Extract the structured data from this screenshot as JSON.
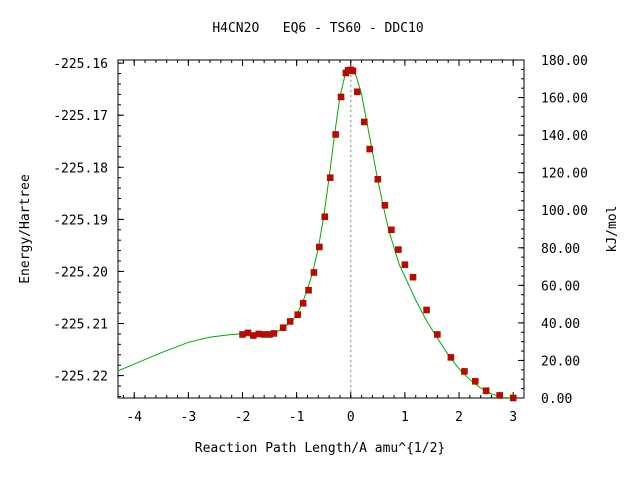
{
  "chart_data": {
    "type": "line",
    "title": "H4CN2O   EQ6 - TS60 - DDC10",
    "xlabel": "Reaction Path Length/A amu^{1/2}",
    "ylabel": "Energy/Hartree",
    "y2label": "kJ/mol",
    "xlim": [
      -4.3,
      3.2
    ],
    "ylim": [
      -225.2243,
      -225.1594
    ],
    "y2lim": [
      0,
      180
    ],
    "x_ticks": [
      -4,
      -3,
      -2,
      -1,
      0,
      1,
      2,
      3
    ],
    "x_tick_labels": [
      "-4",
      "-3",
      "-2",
      "-1",
      "0",
      "1",
      "2",
      "3"
    ],
    "y_ticks": [
      -225.16,
      -225.17,
      -225.18,
      -225.19,
      -225.2,
      -225.21,
      -225.22
    ],
    "y_tick_labels": [
      "-225.16",
      "-225.17",
      "-225.18",
      "-225.19",
      "-225.20",
      "-225.21",
      "-225.22"
    ],
    "y2_ticks": [
      0,
      20,
      40,
      60,
      80,
      100,
      120,
      140,
      160,
      180
    ],
    "y2_tick_labels": [
      "0.00",
      "20.00",
      "40.00",
      "60.00",
      "80.00",
      "100.00",
      "120.00",
      "140.00",
      "160.00",
      "180.00"
    ],
    "ts_marker_x": 0,
    "grid": false,
    "colors": {
      "curve": "#00aa00",
      "points": "#cc0000",
      "marker_line": "#888888",
      "axis": "#000000"
    },
    "curve": {
      "x": [
        -4.3,
        -4.0,
        -3.5,
        -3.0,
        -2.6,
        -2.2,
        -2.0,
        -1.8,
        -1.6,
        -1.4,
        -1.25,
        -1.1,
        -1.0,
        -0.9,
        -0.8,
        -0.7,
        -0.6,
        -0.5,
        -0.4,
        -0.3,
        -0.2,
        -0.1,
        -0.05,
        0.0,
        0.05,
        0.1,
        0.2,
        0.3,
        0.4,
        0.5,
        0.6,
        0.7,
        0.8,
        0.9,
        1.0,
        1.2,
        1.4,
        1.6,
        1.8,
        2.0,
        2.2,
        2.4,
        2.6,
        2.8,
        3.0
      ],
      "y": [
        -225.2191,
        -225.2178,
        -225.2156,
        -225.2136,
        -225.2126,
        -225.2121,
        -225.212,
        -225.212,
        -225.212,
        -225.2119,
        -225.2108,
        -225.2097,
        -225.2083,
        -225.2062,
        -225.2034,
        -225.2,
        -225.1955,
        -225.1895,
        -225.182,
        -225.1738,
        -225.1665,
        -225.162,
        -225.1614,
        -225.1614,
        -225.1617,
        -225.1625,
        -225.166,
        -225.1715,
        -225.177,
        -225.1825,
        -225.1875,
        -225.192,
        -225.1955,
        -225.1988,
        -225.201,
        -225.2055,
        -225.2095,
        -225.2128,
        -225.216,
        -225.2187,
        -225.2208,
        -225.2224,
        -225.2235,
        -225.2242,
        -225.2243
      ]
    },
    "points": {
      "x": [
        -2.0,
        -1.9,
        -1.8,
        -1.7,
        -1.6,
        -1.5,
        -1.42,
        -1.25,
        -1.12,
        -0.98,
        -0.88,
        -0.78,
        -0.68,
        -0.58,
        -0.48,
        -0.38,
        -0.28,
        -0.18,
        -0.09,
        -0.05,
        0.0,
        0.04,
        0.12,
        0.25,
        0.35,
        0.5,
        0.63,
        0.75,
        0.88,
        1.0,
        1.15,
        1.4,
        1.6,
        1.85,
        2.1,
        2.3,
        2.5,
        2.75,
        3.0
      ],
      "y": [
        -225.2121,
        -225.2118,
        -225.2123,
        -225.212,
        -225.2121,
        -225.2121,
        -225.2119,
        -225.2108,
        -225.2096,
        -225.2083,
        -225.2061,
        -225.2036,
        -225.2002,
        -225.1953,
        -225.1895,
        -225.182,
        -225.1737,
        -225.1665,
        -225.1619,
        -225.1614,
        -225.1613,
        -225.1615,
        -225.1655,
        -225.1713,
        -225.1765,
        -225.1823,
        -225.1873,
        -225.192,
        -225.1958,
        -225.1987,
        -225.2011,
        -225.2074,
        -225.2121,
        -225.2165,
        -225.2192,
        -225.2211,
        -225.2229,
        -225.2238,
        -225.2243
      ]
    }
  }
}
